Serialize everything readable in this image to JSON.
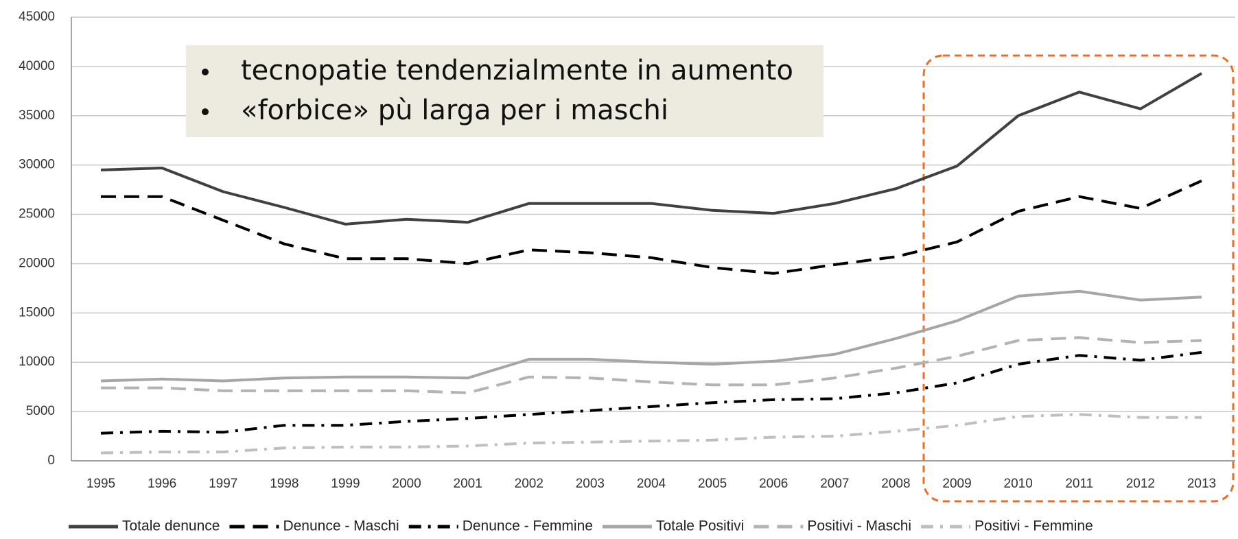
{
  "chart_data": {
    "type": "line",
    "categories": [
      "1995",
      "1996",
      "1997",
      "1998",
      "1999",
      "2000",
      "2001",
      "2002",
      "2003",
      "2004",
      "2005",
      "2006",
      "2007",
      "2008",
      "2009",
      "2010",
      "2011",
      "2012",
      "2013"
    ],
    "series": [
      {
        "name": "Totale denunce",
        "color": "#404040",
        "dash": "solid",
        "values": [
          29500,
          29700,
          27300,
          25700,
          24000,
          24500,
          24200,
          26100,
          26100,
          26100,
          25400,
          25100,
          26100,
          27600,
          29900,
          35000,
          37400,
          35700,
          39300
        ]
      },
      {
        "name": "Denunce - Maschi",
        "color": "#000000",
        "dash": "dashed",
        "values": [
          26800,
          26800,
          24400,
          22000,
          20500,
          20500,
          20000,
          21400,
          21100,
          20600,
          19600,
          19000,
          19900,
          20700,
          22200,
          25300,
          26800,
          25600,
          28400
        ]
      },
      {
        "name": "Denunce - Femmine",
        "color": "#000000",
        "dash": "dashdot",
        "values": [
          2800,
          3000,
          2900,
          3600,
          3600,
          4000,
          4300,
          4700,
          5100,
          5500,
          5900,
          6200,
          6300,
          6900,
          7900,
          9800,
          10700,
          10200,
          11000
        ]
      },
      {
        "name": "Totale Positivi",
        "color": "#a6a6a6",
        "dash": "solid",
        "values": [
          8100,
          8300,
          8100,
          8400,
          8500,
          8500,
          8400,
          10300,
          10300,
          10000,
          9800,
          10100,
          10800,
          12400,
          14200,
          16700,
          17200,
          16300,
          16600
        ]
      },
      {
        "name": "Positivi - Maschi",
        "color": "#b3b3b3",
        "dash": "dashed",
        "values": [
          7400,
          7400,
          7100,
          7100,
          7100,
          7100,
          6900,
          8500,
          8400,
          8000,
          7700,
          7700,
          8400,
          9400,
          10600,
          12200,
          12500,
          12000,
          12200
        ]
      },
      {
        "name": "Positivi - Femmine",
        "color": "#bfbfbf",
        "dash": "dashdot",
        "values": [
          800,
          900,
          900,
          1300,
          1400,
          1400,
          1500,
          1800,
          1900,
          2000,
          2100,
          2400,
          2500,
          3000,
          3600,
          4500,
          4700,
          4400,
          4400
        ]
      }
    ],
    "ylim": [
      0,
      45000
    ],
    "yticks": [
      0,
      5000,
      10000,
      15000,
      20000,
      25000,
      30000,
      35000,
      40000,
      45000
    ],
    "grid": true,
    "legend": "bottom",
    "annotations": [
      "tecnopatie tendenzialmente in aumento",
      "«forbice» pù larga per i maschi"
    ]
  }
}
